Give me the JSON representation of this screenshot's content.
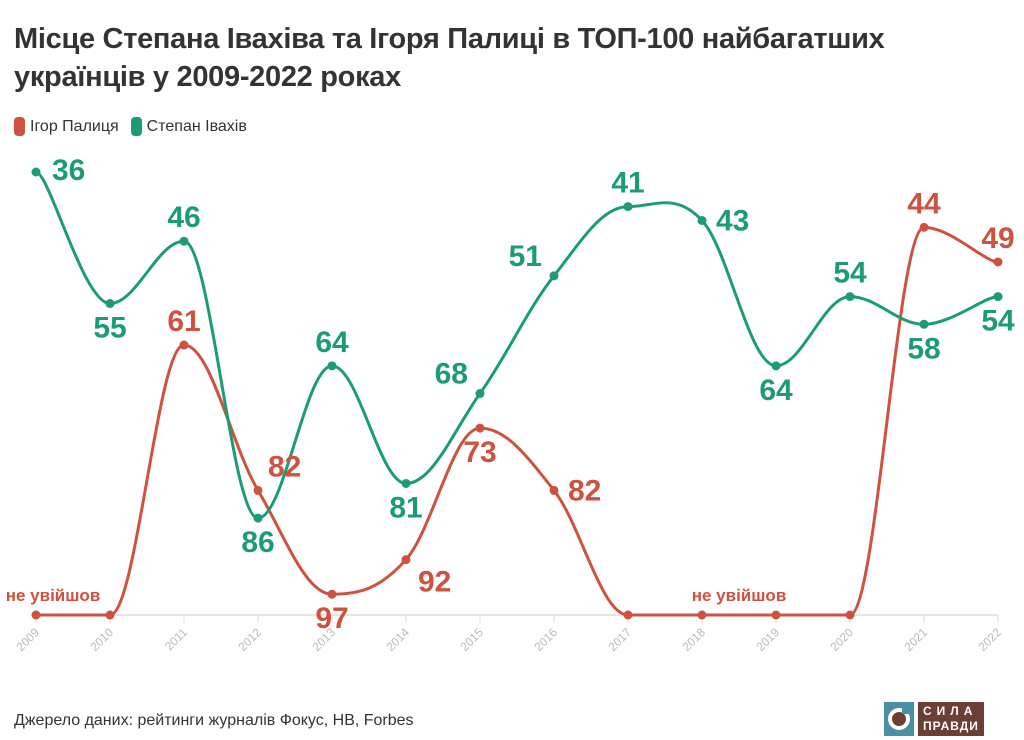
{
  "title": "Місце Степана Івахіва та Ігоря Палиці в ТОП-100 найбагатших українців у 2009-2022 роках",
  "source": "Джерело даних: рейтинги журналів Фокус, НВ, Forbes",
  "logo": {
    "line1": "СИЛА",
    "line2": "ПРАВДИ"
  },
  "colors": {
    "palytsia": "#cd5240",
    "ivakhiv": "#1b9c77",
    "axis": "#e6e6e6",
    "tick_label": "#bbbbbb",
    "text": "#333333"
  },
  "chart_data": {
    "type": "line",
    "title": "Місце Степана Івахіва та Ігоря Палиці в ТОП-100 найбагатших українців у 2009-2022 роках",
    "xlabel": "",
    "ylabel": "",
    "y_inverted": true,
    "ylim": [
      36,
      100
    ],
    "not_in_list_value": 100,
    "grid": false,
    "legend_position": "top-left",
    "x": [
      "2009",
      "2010",
      "2011",
      "2012",
      "2013",
      "2014",
      "2015",
      "2016",
      "2017",
      "2018",
      "2019",
      "2020",
      "2021",
      "2022"
    ],
    "series": [
      {
        "name": "Ігор Палиця",
        "color": "#cd5240",
        "values": [
          null,
          null,
          61,
          82,
          97,
          92,
          73,
          82,
          null,
          null,
          null,
          null,
          44,
          49
        ],
        "label_side": [
          "",
          "",
          "above",
          "above-right",
          "below",
          "below-right",
          "below",
          "right",
          "",
          "",
          "",
          "",
          "above",
          "above"
        ]
      },
      {
        "name": "Степан Івахів",
        "color": "#1b9c77",
        "values": [
          36,
          55,
          46,
          86,
          64,
          81,
          68,
          51,
          41,
          43,
          64,
          54,
          58,
          54
        ],
        "label_side": [
          "right",
          "below",
          "above",
          "below",
          "above",
          "below",
          "above-left",
          "above-left",
          "above",
          "right",
          "below",
          "above",
          "below",
          "below"
        ]
      }
    ],
    "annotations": [
      {
        "text": "не увійшов",
        "series": "Ігор Палиця",
        "from": "2009",
        "to": "2010"
      },
      {
        "text": "не увійшов",
        "series": "Ігор Палиця",
        "from": "2017",
        "to": "2020"
      }
    ]
  }
}
